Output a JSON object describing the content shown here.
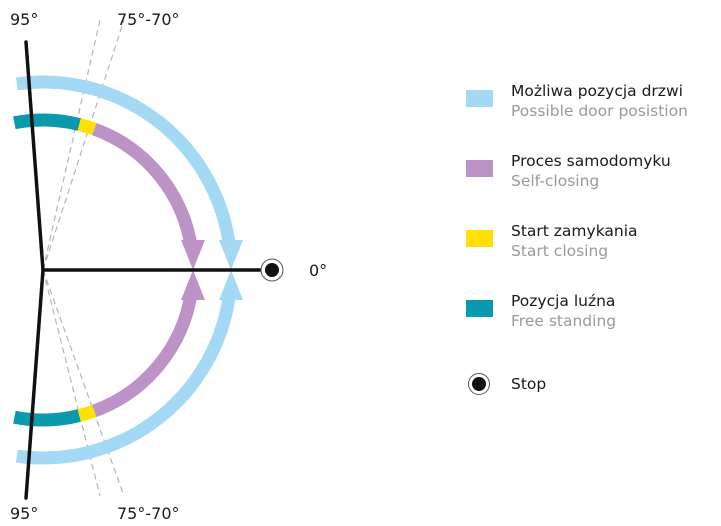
{
  "diagram": {
    "labels": {
      "top_left_angle": "95°",
      "top_mid_angle": "75°-70°",
      "bottom_left_angle": "95°",
      "bottom_mid_angle": "75°-70°",
      "zero_angle": "0°"
    },
    "colors": {
      "possible_position": "#a3d9f5",
      "self_closing": "#bd93c7",
      "start_closing": "#ffe000",
      "free_standing": "#0a99ad",
      "door_line": "#111111",
      "guide_line": "#b5b5b5"
    }
  },
  "legend": {
    "items": [
      {
        "primary": "Możliwa pozycja drzwi",
        "secondary": "Possible door posistion",
        "color": "#a3d9f5"
      },
      {
        "primary": "Proces samodomyku",
        "secondary": "Self-closing",
        "color": "#bd93c7"
      },
      {
        "primary": "Start zamykania",
        "secondary": "Start closing",
        "color": "#ffe000"
      },
      {
        "primary": "Pozycja luźna",
        "secondary": "Free standing",
        "color": "#0a99ad"
      }
    ],
    "stop_label": "Stop"
  }
}
